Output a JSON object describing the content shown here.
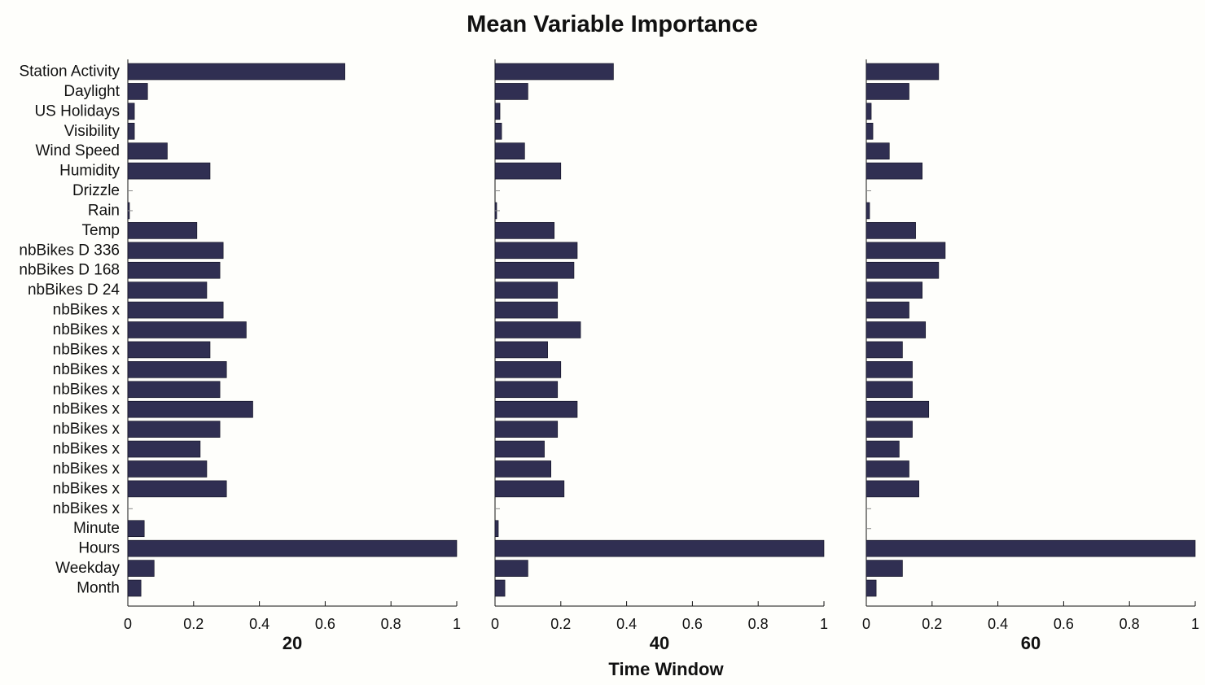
{
  "chart_data": {
    "type": "bar",
    "orientation": "horizontal",
    "title": "Mean Variable Importance",
    "xlabel": "Time Window",
    "ylabel": "",
    "bar_color": "#302f52",
    "xlim": [
      0,
      1
    ],
    "x_ticks": [
      "0",
      "0.2",
      "0.4",
      "0.6",
      "0.8",
      "1"
    ],
    "categories": [
      "Station Activity",
      "Daylight",
      "US Holidays",
      "Visibility",
      "Wind Speed",
      "Humidity",
      "Drizzle",
      "Rain",
      "Temp",
      "nbBikes D 336",
      "nbBikes D 168",
      "nbBikes D 24",
      "nbBikes x",
      "nbBikes x",
      "nbBikes x",
      "nbBikes x",
      "nbBikes x",
      "nbBikes x",
      "nbBikes x",
      "nbBikes x",
      "nbBikes x",
      "nbBikes x",
      "nbBikes x",
      "Minute",
      "Hours",
      "Weekday",
      "Month"
    ],
    "series": [
      {
        "name": "20",
        "values": [
          0.66,
          0.06,
          0.02,
          0.02,
          0.12,
          0.25,
          0.0,
          0.005,
          0.21,
          0.29,
          0.28,
          0.24,
          0.29,
          0.36,
          0.25,
          0.3,
          0.28,
          0.38,
          0.28,
          0.22,
          0.24,
          0.3,
          0.0,
          0.05,
          1.0,
          0.08,
          0.04
        ]
      },
      {
        "name": "40",
        "values": [
          0.36,
          0.1,
          0.015,
          0.02,
          0.09,
          0.2,
          0.0,
          0.005,
          0.18,
          0.25,
          0.24,
          0.19,
          0.19,
          0.26,
          0.16,
          0.2,
          0.19,
          0.25,
          0.19,
          0.15,
          0.17,
          0.21,
          0.0,
          0.01,
          1.0,
          0.1,
          0.03
        ]
      },
      {
        "name": "60",
        "values": [
          0.22,
          0.13,
          0.015,
          0.02,
          0.07,
          0.17,
          0.0,
          0.01,
          0.15,
          0.24,
          0.22,
          0.17,
          0.13,
          0.18,
          0.11,
          0.14,
          0.14,
          0.19,
          0.14,
          0.1,
          0.13,
          0.16,
          0.0,
          0.0,
          1.0,
          0.11,
          0.03
        ]
      }
    ]
  }
}
